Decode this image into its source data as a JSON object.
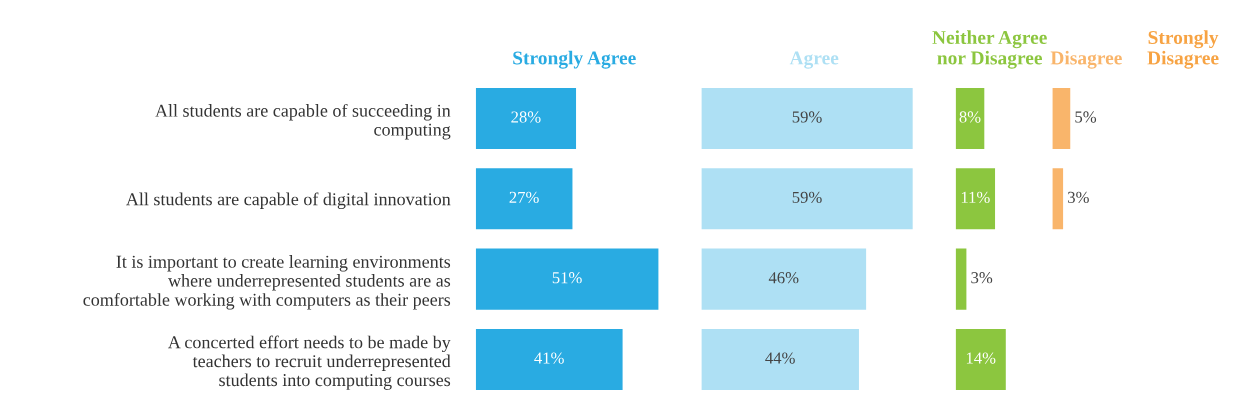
{
  "chart_data": [
    {
      "type": "bar",
      "orientation": "horizontal",
      "title": "Strongly Agree",
      "color": "#29abe2",
      "tick_labels": "y",
      "categories": [
        "All students are capable of succeeding in\ncomputing",
        "All students are capable of digital innovation",
        "It is important to create learning environments\nwhere underrepresented students are as\ncomfortable working with computers as their peers",
        "A concerted effort needs to be made by\nteachers to recruit underrepresented\nstudents into computing courses"
      ],
      "values": [
        28,
        27,
        51,
        41
      ],
      "value_labels": [
        "28%",
        "27%",
        "51%",
        "41%"
      ]
    },
    {
      "type": "bar",
      "orientation": "horizontal",
      "title": "Agree",
      "color": "#aee0f4",
      "tick_labels": false,
      "categories": [
        null,
        null,
        null,
        null
      ],
      "values": [
        59,
        59,
        46,
        44
      ],
      "value_labels": [
        "59%",
        "59%",
        "46%",
        "44%"
      ]
    },
    {
      "type": "bar",
      "orientation": "horizontal",
      "title": "Neither Agree\nnor Disagree",
      "color": "#8cc63f",
      "tick_labels": false,
      "categories": [
        null,
        null,
        null,
        null
      ],
      "values": [
        8,
        11,
        3,
        14
      ],
      "value_labels": [
        "8%",
        "11%",
        "3%",
        "14%"
      ]
    },
    {
      "type": "bar",
      "orientation": "horizontal",
      "title": "Disagree",
      "color": "#f9b56b",
      "tick_labels": false,
      "categories": [
        null,
        null,
        null,
        null
      ],
      "values": [
        5,
        3,
        null,
        null
      ],
      "value_labels": [
        "5%",
        "3%",
        null,
        null
      ]
    },
    {
      "type": "other",
      "title": "Strongly\nDisagree",
      "color": "#f7a343"
    }
  ]
}
